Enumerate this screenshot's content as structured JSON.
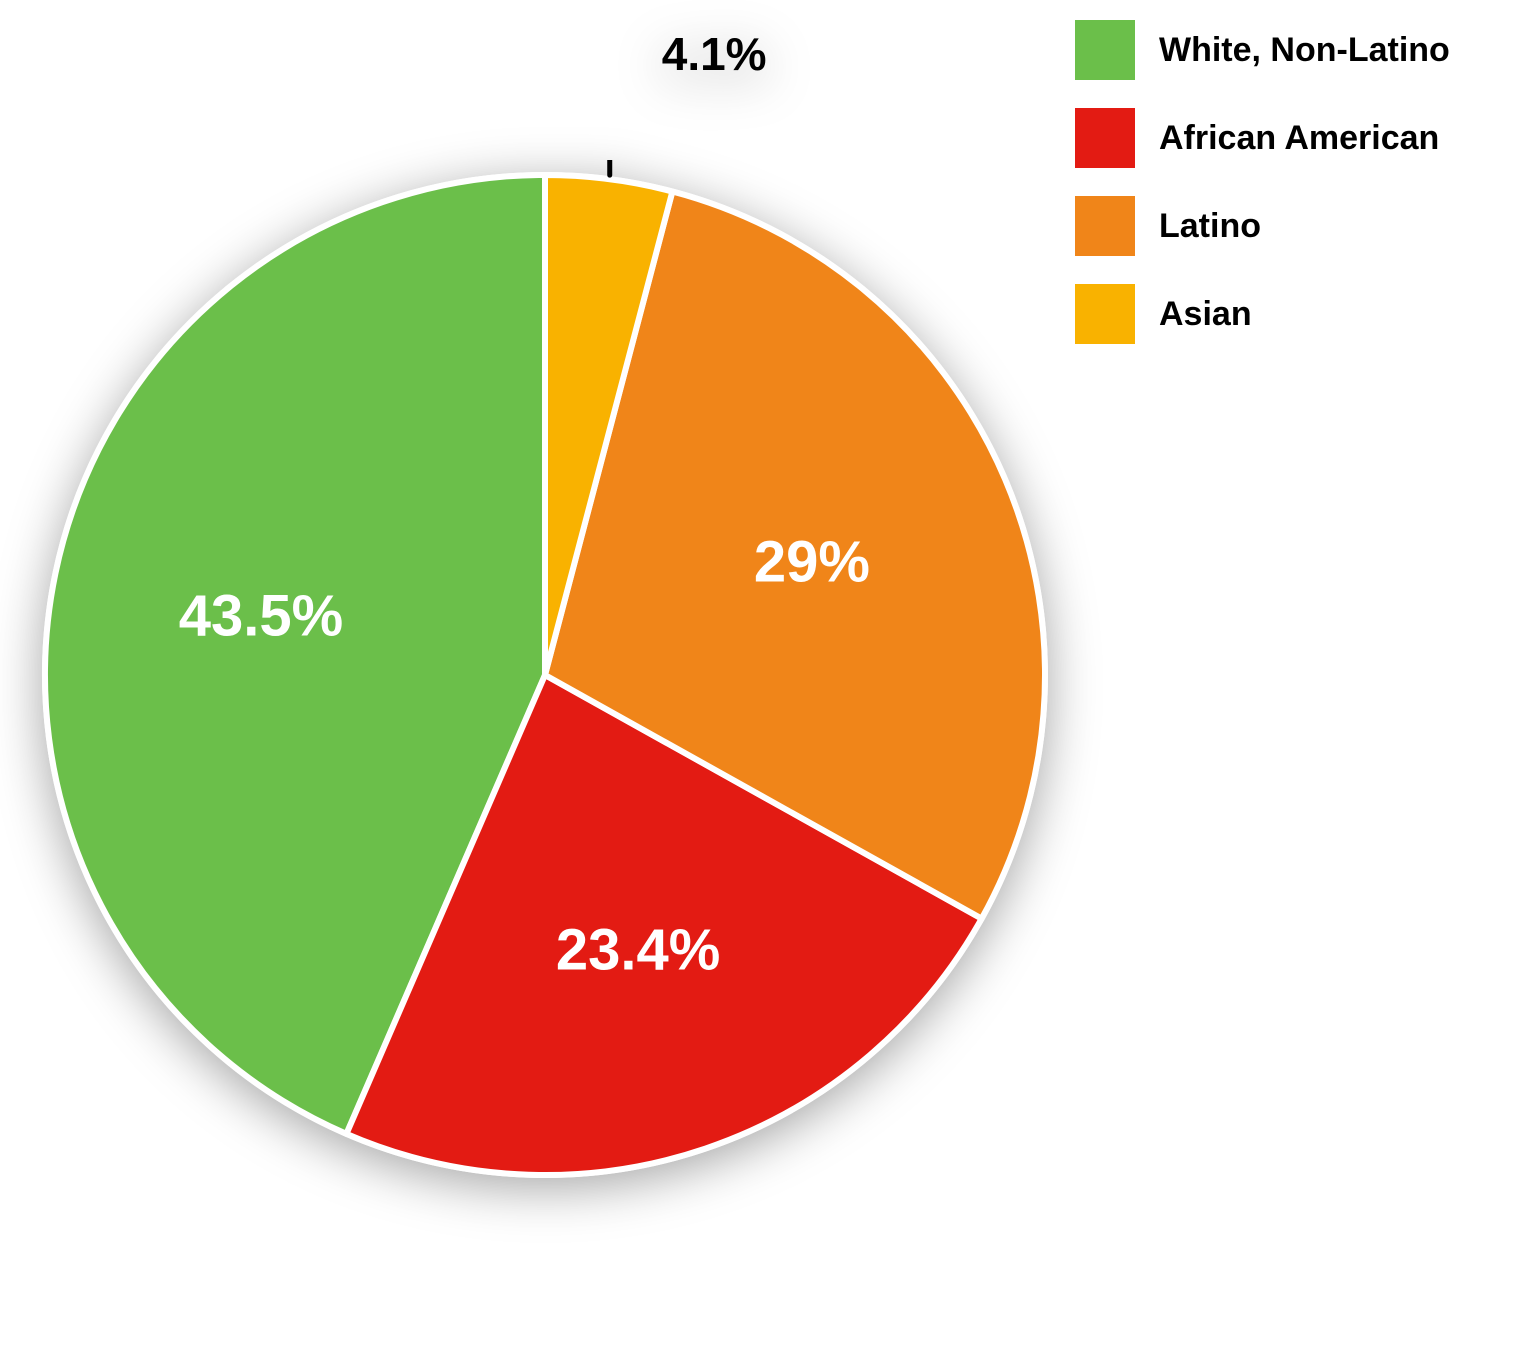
{
  "chart": {
    "type": "pie",
    "background_color": "#ffffff",
    "stroke_color": "#ffffff",
    "stroke_width": 6,
    "shadow_color": "rgba(0,0,0,0.35)",
    "start_angle_deg": -90,
    "direction": "counterclockwise",
    "slices": [
      {
        "key": "white",
        "label": "White, Non-Latino",
        "value": 43.5,
        "pct_text": "43.5%",
        "color": "#6bbf4a",
        "label_color": "#ffffff",
        "label_fontsize": 58
      },
      {
        "key": "african",
        "label": "African American",
        "value": 23.4,
        "pct_text": "23.4%",
        "color": "#e31b13",
        "label_color": "#ffffff",
        "label_fontsize": 58
      },
      {
        "key": "latino",
        "label": "Latino",
        "value": 29.0,
        "pct_text": "29%",
        "color": "#f08519",
        "label_color": "#ffffff",
        "label_fontsize": 58
      },
      {
        "key": "asian",
        "label": "Asian",
        "value": 4.1,
        "pct_text": "4.1%",
        "color": "#f9b200",
        "label_color": "#000000",
        "label_fontsize": 46,
        "callout": true
      }
    ],
    "legend": {
      "swatch_size": 60,
      "font_size": 34,
      "font_weight": 700,
      "text_color": "#000000",
      "order": [
        "white",
        "african",
        "latino",
        "asian"
      ]
    },
    "callout": {
      "line_color": "#000000",
      "line_width": 5
    }
  }
}
